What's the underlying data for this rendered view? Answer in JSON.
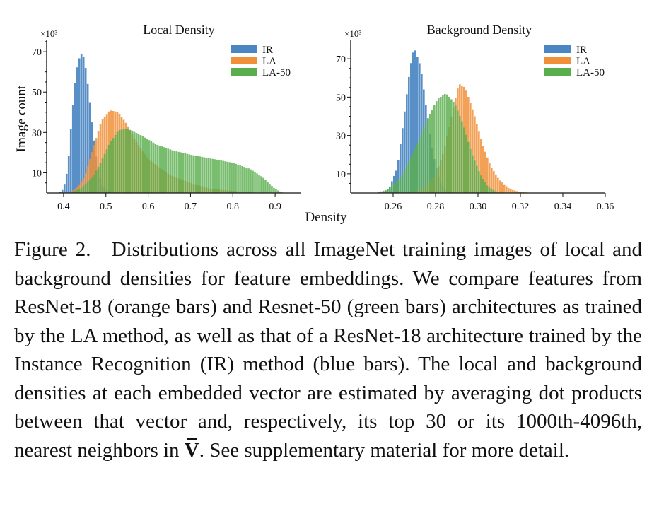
{
  "figure_number": "Figure 2.",
  "xlabel": "Density",
  "colors": {
    "IR": "#4a86c1",
    "LA": "#f0913a",
    "LA-50": "#5aae4e"
  },
  "chart_data": [
    {
      "type": "bar",
      "title": "Local Density",
      "xlabel": "Density",
      "ylabel": "Image count",
      "y_multiplier": "×10³",
      "xlim": [
        0.36,
        0.96
      ],
      "ylim": [
        0,
        76
      ],
      "xticks": [
        0.4,
        0.5,
        0.6,
        0.7,
        0.8,
        0.9
      ],
      "xtick_labels": [
        "0.4",
        "0.5",
        "0.6",
        "0.7",
        "0.8",
        "0.9"
      ],
      "yticks": [
        10,
        30,
        50,
        70
      ],
      "ytick_labels": [
        "10",
        "30",
        "50",
        "70"
      ],
      "legend": [
        "IR",
        "LA",
        "LA-50"
      ],
      "legend_position": "top-right",
      "bin_width": 0.005,
      "series": [
        {
          "name": "IR",
          "x": [
            0.39,
            0.4,
            0.41,
            0.42,
            0.43,
            0.44,
            0.445,
            0.45,
            0.46,
            0.47,
            0.48,
            0.49,
            0.5,
            0.51,
            0.52
          ],
          "values": [
            0,
            2,
            12,
            38,
            60,
            69,
            69,
            66,
            50,
            30,
            14,
            5,
            2,
            0.5,
            0
          ]
        },
        {
          "name": "LA",
          "x": [
            0.41,
            0.43,
            0.45,
            0.47,
            0.49,
            0.51,
            0.53,
            0.55,
            0.57,
            0.6,
            0.65,
            0.7,
            0.75,
            0.8,
            0.85
          ],
          "values": [
            0,
            2,
            8,
            22,
            36,
            41,
            40,
            34,
            26,
            17,
            9,
            5,
            2,
            1,
            0
          ]
        },
        {
          "name": "LA-50",
          "x": [
            0.41,
            0.44,
            0.47,
            0.49,
            0.51,
            0.53,
            0.55,
            0.58,
            0.62,
            0.66,
            0.7,
            0.75,
            0.8,
            0.84,
            0.87,
            0.9,
            0.92
          ],
          "values": [
            0,
            2,
            8,
            16,
            25,
            31,
            32,
            29,
            24,
            21,
            19,
            17,
            15,
            12,
            8,
            2,
            0
          ]
        }
      ]
    },
    {
      "type": "bar",
      "title": "Background Density",
      "xlabel": "Density",
      "ylabel": "",
      "y_multiplier": "×10³",
      "xlim": [
        0.24,
        0.36
      ],
      "ylim": [
        0,
        80
      ],
      "xticks": [
        0.26,
        0.28,
        0.3,
        0.32,
        0.34,
        0.36
      ],
      "xtick_labels": [
        "0.26",
        "0.28",
        "0.30",
        "0.32",
        "0.34",
        "0.36"
      ],
      "yticks": [
        10,
        30,
        50,
        70
      ],
      "ytick_labels": [
        "10",
        "30",
        "50",
        "70"
      ],
      "legend": [
        "IR",
        "LA",
        "LA-50"
      ],
      "legend_position": "top-right",
      "bin_width": 0.001,
      "series": [
        {
          "name": "IR",
          "x": [
            0.254,
            0.258,
            0.262,
            0.265,
            0.268,
            0.27,
            0.273,
            0.276,
            0.279,
            0.282,
            0.285,
            0.288
          ],
          "values": [
            0,
            2,
            13,
            38,
            65,
            76,
            66,
            42,
            20,
            6,
            1.5,
            0
          ]
        },
        {
          "name": "LA",
          "x": [
            0.268,
            0.274,
            0.28,
            0.284,
            0.288,
            0.291,
            0.294,
            0.298,
            0.302,
            0.306,
            0.31,
            0.315,
            0.32,
            0.326
          ],
          "values": [
            0,
            2,
            9,
            22,
            42,
            57,
            55,
            42,
            26,
            14,
            7,
            2,
            0.5,
            0
          ]
        },
        {
          "name": "LA-50",
          "x": [
            0.252,
            0.258,
            0.264,
            0.27,
            0.276,
            0.281,
            0.285,
            0.289,
            0.293,
            0.297,
            0.301,
            0.305,
            0.31
          ],
          "values": [
            0,
            2,
            9,
            22,
            38,
            49,
            52,
            47,
            36,
            21,
            10,
            3,
            0
          ]
        }
      ]
    }
  ],
  "caption": {
    "label": "Figure 2.",
    "text_before_v": "Distributions across all ImageNet training images of local and background densities for feature embeddings. We compare features from ResNet-18 (orange bars) and Resnet-50 (green bars) architectures as trained by the LA method, as well as that of a ResNet-18 architecture trained by the Instance Recognition (IR) method (blue bars). The local and background densities at each embedded vector are estimated by averaging dot products between that vector and, respectively, its top 30 or its 1000th-4096th, nearest neighbors in",
    "v_symbol": "V",
    "text_after_v": ". See supplementary material for more detail."
  }
}
